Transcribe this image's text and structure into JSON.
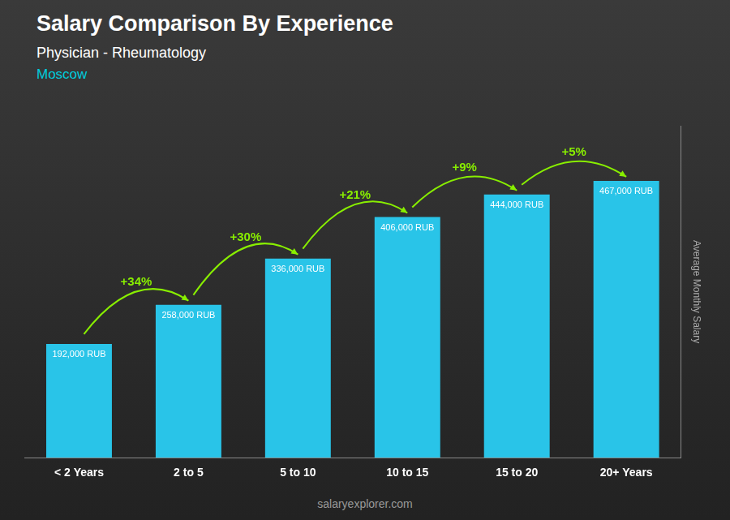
{
  "chart_data": {
    "type": "bar",
    "title": "Salary Comparison By Experience",
    "subtitle": [
      "Physician - Rheumatology",
      "Moscow"
    ],
    "ylabel": "Average Monthly Salary",
    "categories": [
      "< 2 Years",
      "2 to 5",
      "5 to 10",
      "10 to 15",
      "15 to 20",
      "20+ Years"
    ],
    "values": [
      192000,
      258000,
      336000,
      406000,
      444000,
      467000
    ],
    "value_labels": [
      "192,000 RUB",
      "258,000 RUB",
      "336,000 RUB",
      "406,000 RUB",
      "444,000 RUB",
      "467,000 RUB"
    ],
    "data_labels": true,
    "color": "#29C4E8",
    "ylim": [
      0,
      560000
    ],
    "grid": false,
    "tick_labels": "x",
    "annotations": [
      "+34%",
      "+30%",
      "+21%",
      "+9%",
      "+5%"
    ],
    "watermark": "salaryexplorer.com"
  }
}
